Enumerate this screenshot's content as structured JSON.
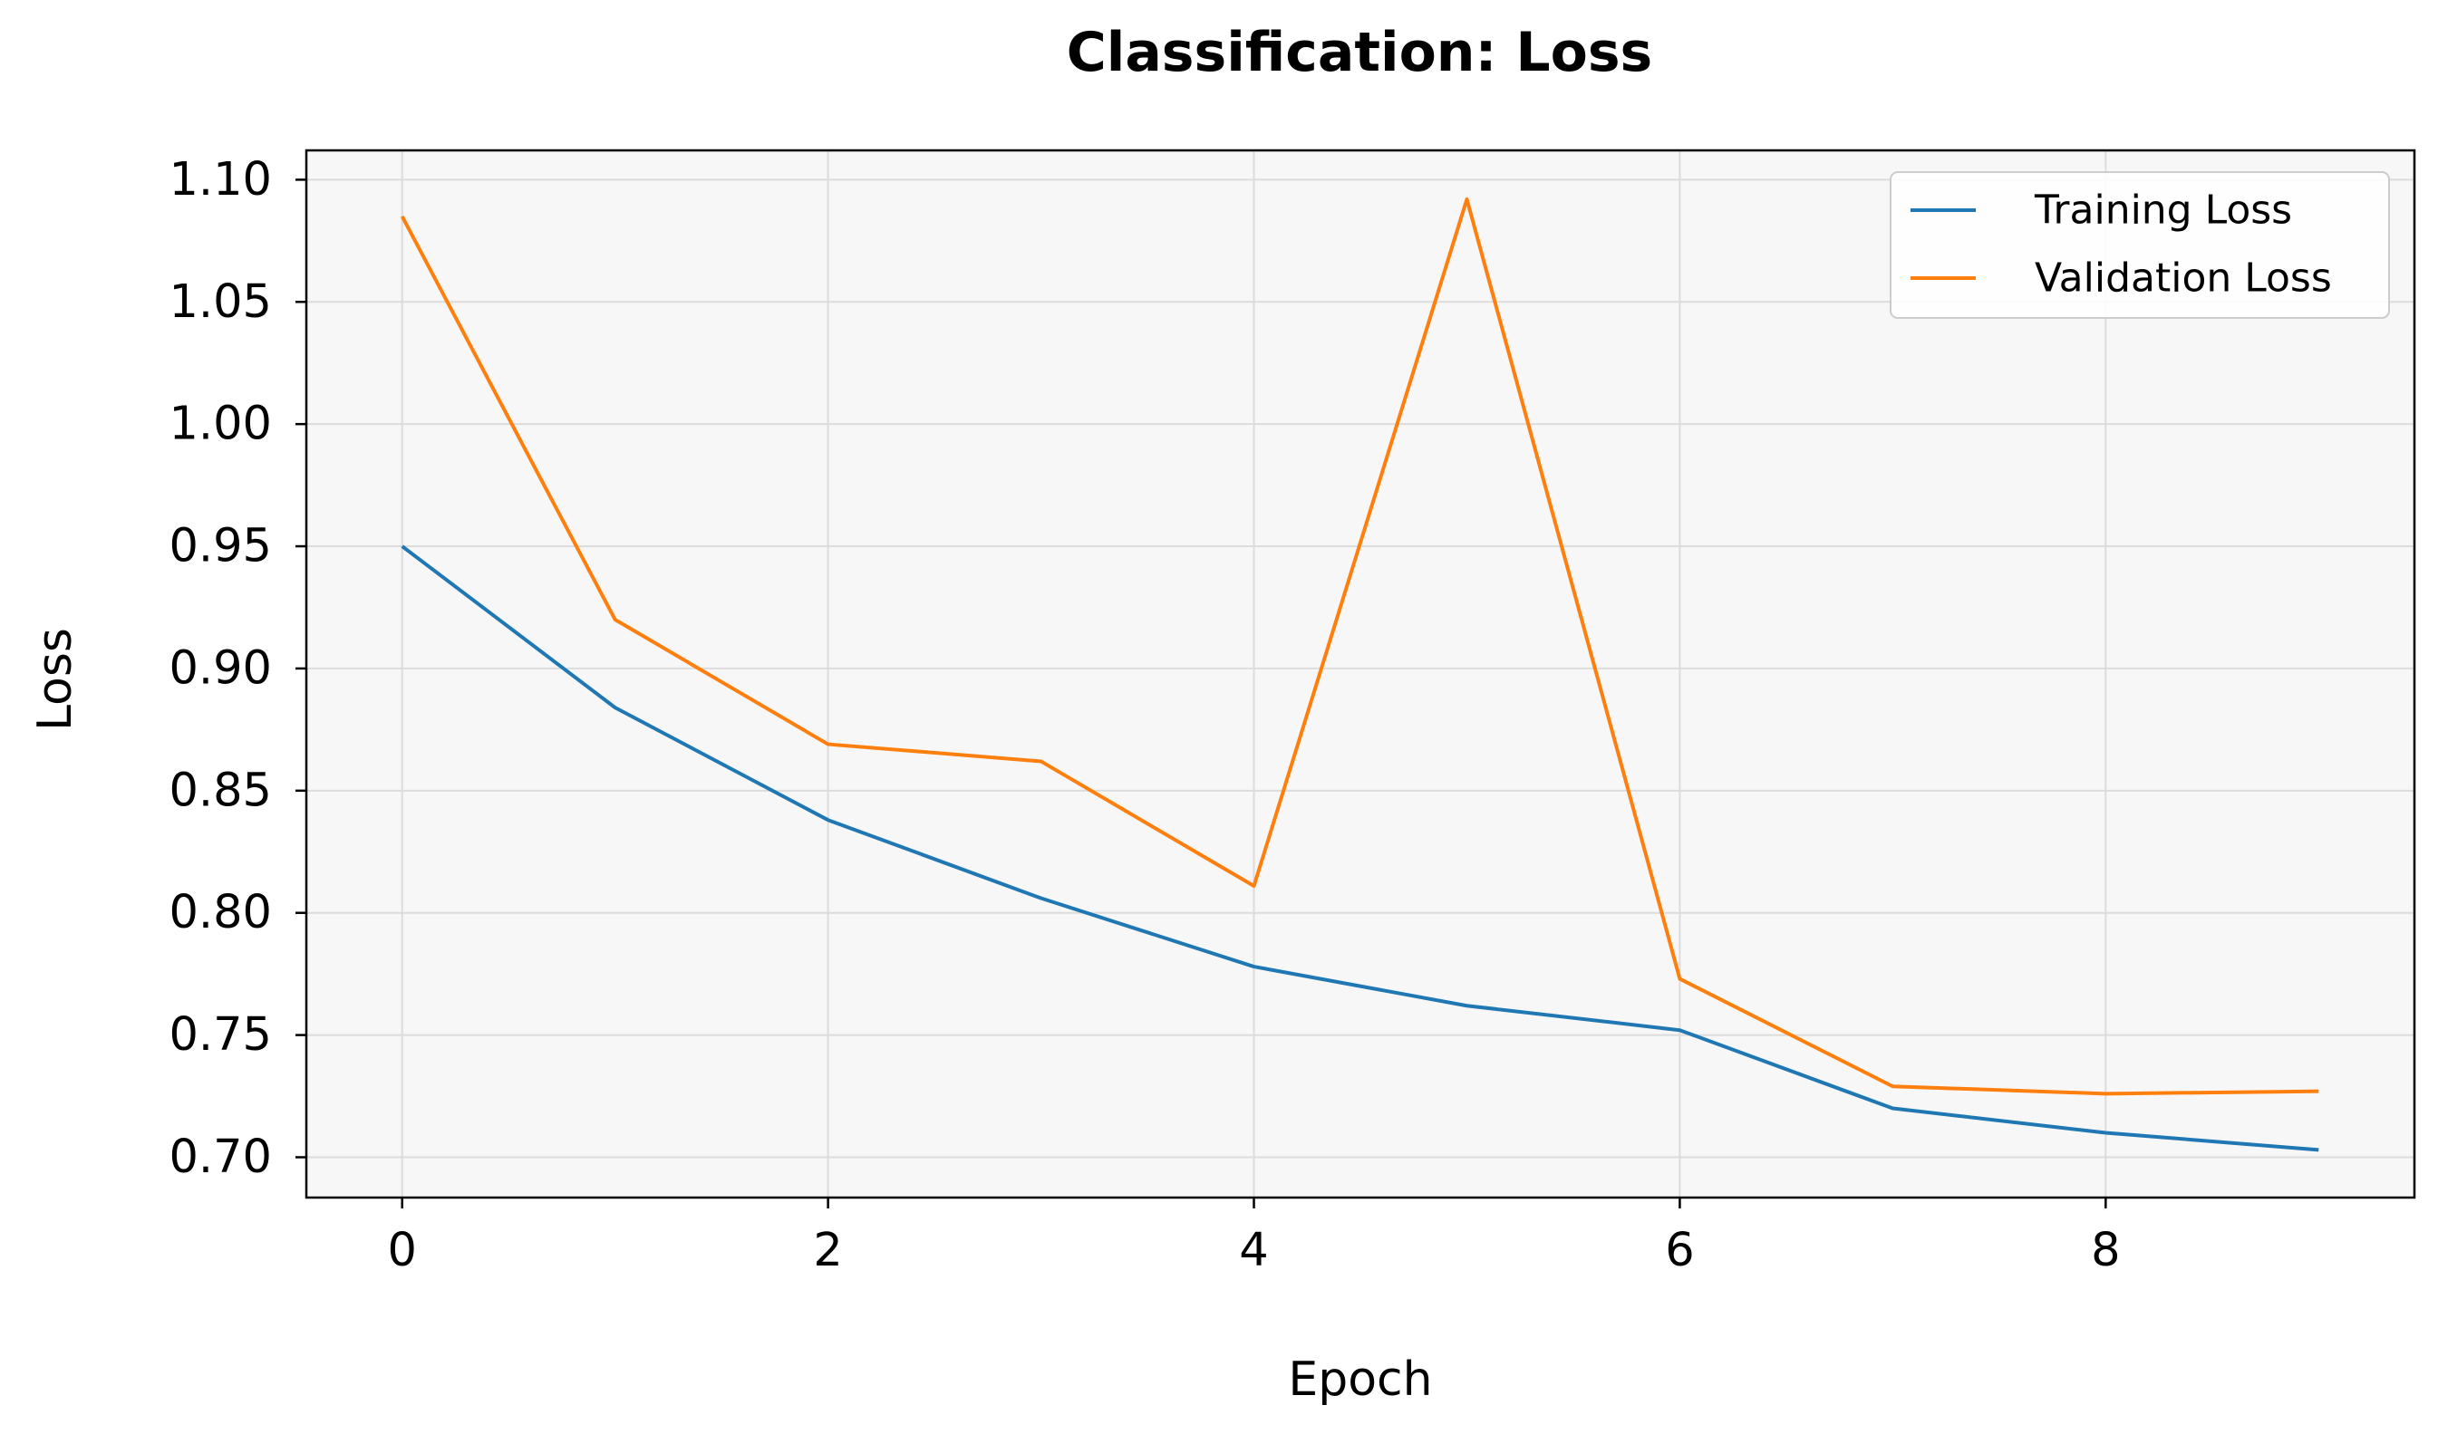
{
  "chart_data": {
    "type": "line",
    "title": "Classification: Loss",
    "xlabel": "Epoch",
    "ylabel": "Loss",
    "x": [
      0,
      1,
      2,
      3,
      4,
      5,
      6,
      7,
      8,
      9
    ],
    "series": [
      {
        "name": "Training Loss",
        "color": "#1f77b4",
        "values": [
          0.95,
          0.884,
          0.838,
          0.806,
          0.778,
          0.762,
          0.752,
          0.72,
          0.71,
          0.703
        ]
      },
      {
        "name": "Validation Loss",
        "color": "#ff7f0e",
        "values": [
          1.085,
          0.92,
          0.869,
          0.862,
          0.811,
          1.092,
          0.773,
          0.729,
          0.726,
          0.727
        ]
      }
    ],
    "xlim": [
      -0.45,
      9.45
    ],
    "ylim": [
      0.6835,
      1.112
    ],
    "xticks": [
      0,
      2,
      4,
      6,
      8
    ],
    "xtick_labels": [
      "0",
      "2",
      "4",
      "6",
      "8"
    ],
    "yticks": [
      0.7,
      0.75,
      0.8,
      0.85,
      0.9,
      0.95,
      1.0,
      1.05,
      1.1
    ],
    "ytick_labels": [
      "0.70",
      "0.75",
      "0.80",
      "0.85",
      "0.90",
      "0.95",
      "1.00",
      "1.05",
      "1.10"
    ],
    "grid": true,
    "legend_position": "top-right",
    "background_color": "#f7f7f7",
    "grid_color": "#dcdcdc"
  }
}
